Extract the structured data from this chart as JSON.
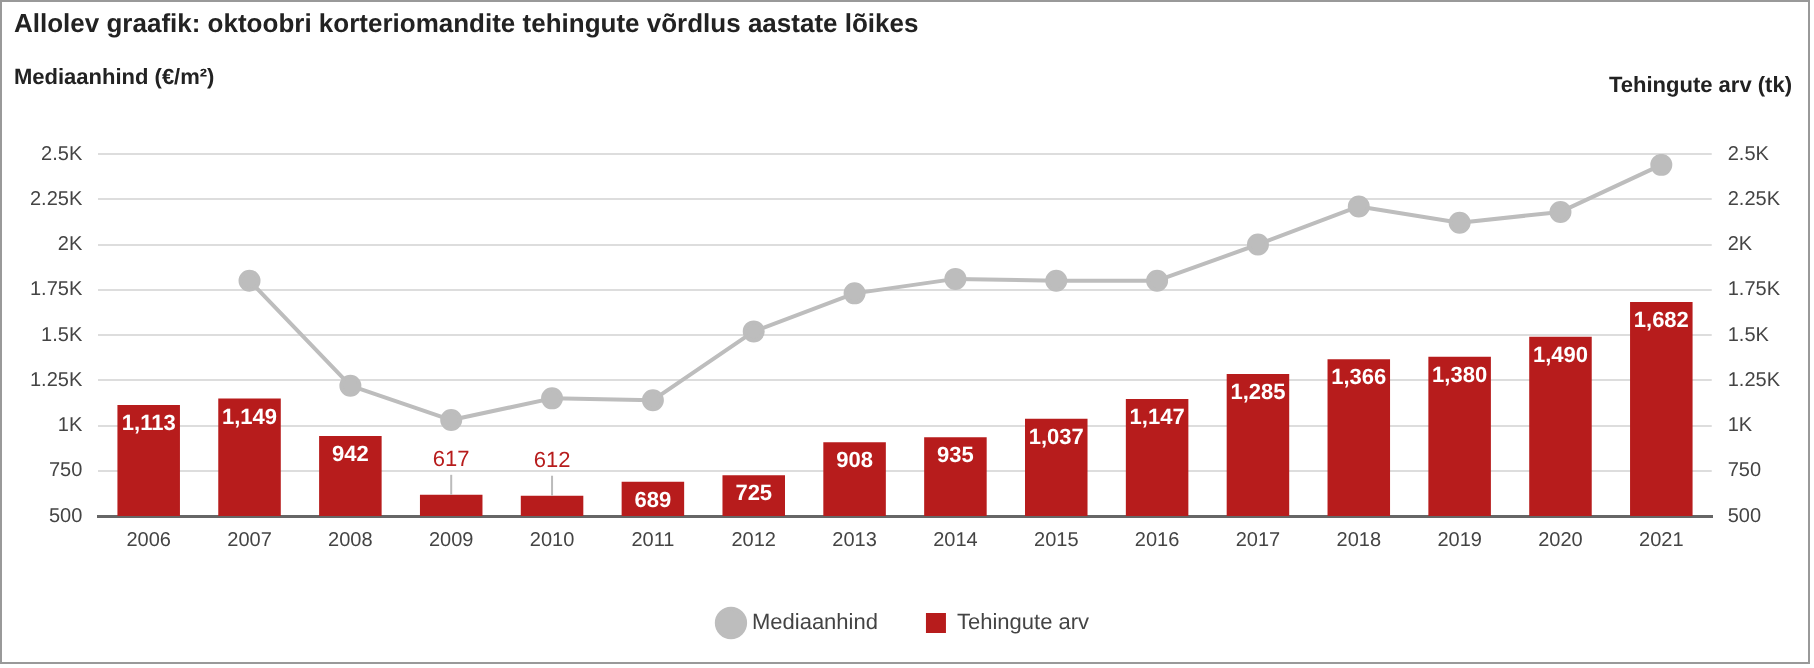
{
  "chart_data": {
    "type": "bar",
    "title": "Allolev graafik: oktoobri korteriomandite tehingute võrdlus aastate lõikes",
    "ylabel": "Mediaanhind (€/m²)",
    "y2label": "Tehingute arv (tk)",
    "categories": [
      "2006",
      "2007",
      "2008",
      "2009",
      "2010",
      "2011",
      "2012",
      "2013",
      "2014",
      "2015",
      "2016",
      "2017",
      "2018",
      "2019",
      "2020",
      "2021"
    ],
    "series": [
      {
        "name": "Mediaanhind",
        "type": "line",
        "color": "#bdbdbd",
        "marker": "circle",
        "values": [
          null,
          1800,
          1220,
          1030,
          1150,
          1140,
          1520,
          1730,
          1810,
          1800,
          1800,
          2000,
          2210,
          2120,
          2180,
          2440
        ]
      },
      {
        "name": "Tehingute arv",
        "color": "#b71c1c",
        "values": [
          1113,
          1149,
          942,
          617,
          612,
          689,
          725,
          908,
          935,
          1037,
          1147,
          1285,
          1366,
          1380,
          1490,
          1682
        ],
        "value_labels": [
          "1,113",
          "1,149",
          "942",
          "617",
          "612",
          "689",
          "725",
          "908",
          "935",
          "1,037",
          "1,147",
          "1,285",
          "1,366",
          "1,380",
          "1,490",
          "1,682"
        ]
      }
    ],
    "ylim": [
      500,
      2500
    ],
    "yticks": [
      500,
      750,
      {
        "value": 1000,
        "label": "1K"
      },
      {
        "value": 1250,
        "label": "1.25K"
      },
      {
        "value": 1500,
        "label": "1.5K"
      },
      {
        "value": 1750,
        "label": "1.75K"
      },
      {
        "value": 2000,
        "label": "2K"
      },
      {
        "value": 2250,
        "label": "2.25K"
      },
      {
        "value": 2500,
        "label": "2.5K"
      }
    ],
    "y2lim": [
      500,
      2500
    ],
    "y2ticks": [
      500,
      750,
      {
        "value": 1000,
        "label": "1K"
      },
      {
        "value": 1250,
        "label": "1.25K"
      },
      {
        "value": 1500,
        "label": "1.5K"
      },
      {
        "value": 1750,
        "label": "1.75K"
      },
      {
        "value": 2000,
        "label": "2K"
      },
      {
        "value": 2250,
        "label": "2.25K"
      },
      {
        "value": 2500,
        "label": "2.5K"
      }
    ],
    "grid": "y",
    "legend": "bottom"
  }
}
